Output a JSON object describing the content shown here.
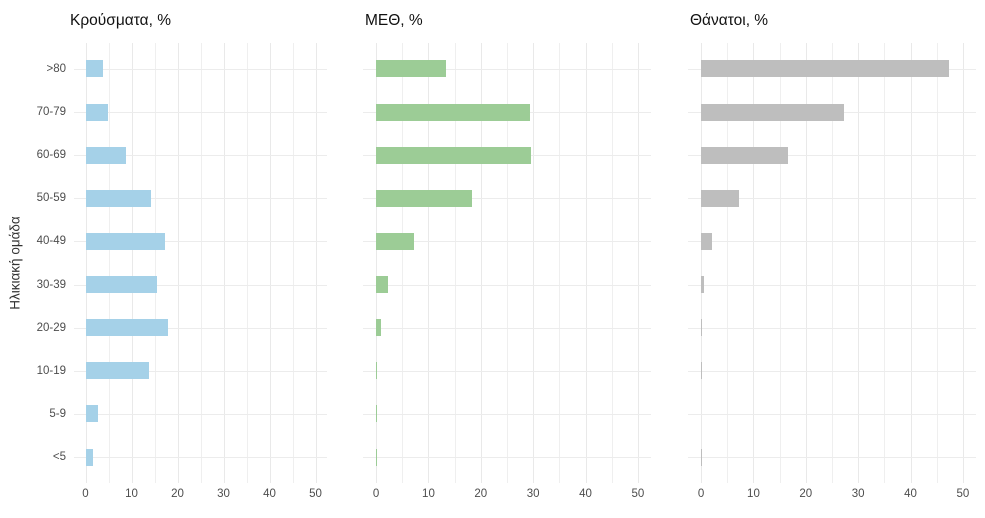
{
  "figure": {
    "y_axis_label": "Ηλικιακή ομάδα"
  },
  "style": {
    "grid_color": "#ececec",
    "tick_label_color": "#4d4d4d",
    "title_color": "#111111",
    "background": "#ffffff"
  },
  "chart_data": [
    {
      "type": "bar",
      "orientation": "horizontal",
      "title": "Κρούσματα, %",
      "ylabel": "Ηλικιακή ομάδα",
      "xlabel": "",
      "categories": [
        ">80",
        "70-79",
        "60-69",
        "50-59",
        "40-49",
        "30-39",
        "20-29",
        "10-19",
        "5-9",
        "<5"
      ],
      "values": [
        3.9,
        4.9,
        8.7,
        14.3,
        17.2,
        15.5,
        18.0,
        13.8,
        2.8,
        1.7
      ],
      "bar_color": "#a5d1e8",
      "xlim": [
        0,
        50
      ],
      "x_ticks": [
        0,
        10,
        20,
        30,
        40,
        50
      ],
      "minor_grid_step": 5,
      "grid": "on",
      "legend": "none"
    },
    {
      "type": "bar",
      "orientation": "horizontal",
      "title": "ΜΕΘ, %",
      "ylabel": "",
      "xlabel": "",
      "categories": [
        ">80",
        "70-79",
        "60-69",
        "50-59",
        "40-49",
        "30-39",
        "20-29",
        "10-19",
        "5-9",
        "<5"
      ],
      "values": [
        13.4,
        29.4,
        29.6,
        18.3,
        7.2,
        2.3,
        1.0,
        0.2,
        0.1,
        0.2
      ],
      "bar_color": "#9ccc96",
      "xlim": [
        0,
        50
      ],
      "x_ticks": [
        0,
        10,
        20,
        30,
        40,
        50
      ],
      "minor_grid_step": 5,
      "grid": "on",
      "legend": "none"
    },
    {
      "type": "bar",
      "orientation": "horizontal",
      "title": "Θάνατοι, %",
      "ylabel": "",
      "xlabel": "",
      "categories": [
        ">80",
        "70-79",
        "60-69",
        "50-59",
        "40-49",
        "30-39",
        "20-29",
        "10-19",
        "5-9",
        "<5"
      ],
      "values": [
        47.3,
        27.2,
        16.6,
        7.3,
        2.1,
        0.5,
        0.1,
        0.2,
        0.0,
        0.2
      ],
      "bar_color": "#bebebe",
      "xlim": [
        0,
        50
      ],
      "x_ticks": [
        0,
        10,
        20,
        30,
        40,
        50
      ],
      "minor_grid_step": 5,
      "grid": "on",
      "legend": "none"
    }
  ]
}
